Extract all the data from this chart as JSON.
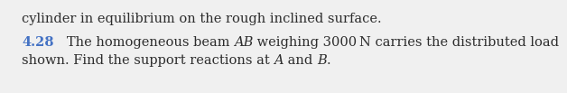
{
  "line1": "cylinder in equilibrium on the rough inclined surface.",
  "problem_number": "4.28",
  "line2_pre_AB": "   The homogeneous beam ",
  "AB": "AB",
  "line2_post_AB": " weighing 3000 N carries the distributed load",
  "line3_pre_A": "shown. Find the support reactions at ",
  "A_text": "A",
  "line3_mid": " and ",
  "B_text": "B",
  "line3_end": ".",
  "number_color": "#4472C4",
  "text_color": "#2D2D2D",
  "background_color": "#F0F0F0",
  "font_size": 10.5
}
